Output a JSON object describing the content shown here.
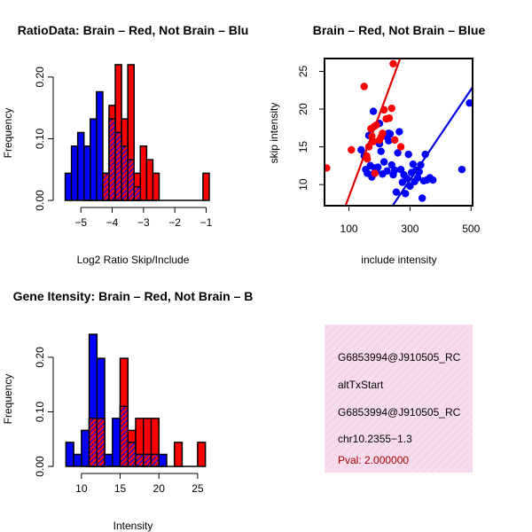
{
  "chart_data": [
    {
      "type": "bar",
      "title": "RatioData: Brain – Red, Not Brain – Blu",
      "xlabel": "Log2 Ratio Skip/Include",
      "ylabel": "Frequency",
      "xlim": [
        -5.6,
        -0.9
      ],
      "ylim": [
        0,
        0.23
      ],
      "xticks": [
        -5,
        -4,
        -3,
        -2,
        -1
      ],
      "xtick_labels": [
        "−5",
        "−4",
        "−3",
        "−2",
        "−1"
      ],
      "yticks": [
        0.0,
        0.1,
        0.2
      ],
      "ytick_labels": [
        "0.00",
        "0.10",
        "0.20"
      ],
      "series": [
        {
          "name": "Not Brain",
          "color": "#0000ff",
          "bins": [
            [
              -5.5,
              -5.3,
              0.044
            ],
            [
              -5.3,
              -5.1,
              0.088
            ],
            [
              -5.1,
              -4.9,
              0.11
            ],
            [
              -4.9,
              -4.7,
              0.088
            ],
            [
              -4.7,
              -4.5,
              0.132
            ],
            [
              -4.5,
              -4.3,
              0.176
            ],
            [
              -4.3,
              -4.1,
              0.044
            ],
            [
              -4.1,
              -3.9,
              0.132
            ],
            [
              -3.9,
              -3.7,
              0.11
            ],
            [
              -3.7,
              -3.5,
              0.088
            ],
            [
              -3.5,
              -3.3,
              0.066
            ],
            [
              -3.3,
              -3.1,
              0.022
            ]
          ]
        },
        {
          "name": "Brain",
          "color": "#ff0000",
          "bins": [
            [
              -4.3,
              -4.1,
              0.044
            ],
            [
              -4.1,
              -3.9,
              0.154
            ],
            [
              -3.9,
              -3.7,
              0.22
            ],
            [
              -3.7,
              -3.5,
              0.132
            ],
            [
              -3.5,
              -3.3,
              0.22
            ],
            [
              -3.3,
              -3.1,
              0.044
            ],
            [
              -3.1,
              -2.9,
              0.088
            ],
            [
              -2.9,
              -2.7,
              0.066
            ],
            [
              -2.7,
              -2.5,
              0.044
            ],
            [
              -1.1,
              -0.9,
              0.044
            ]
          ]
        }
      ]
    },
    {
      "type": "scatter",
      "title": "Brain – Red, Not Brain – Blue",
      "xlabel": "include intensity",
      "ylabel": "skip intensity",
      "xlim": [
        20,
        505
      ],
      "ylim": [
        7.2,
        26.7
      ],
      "xticks": [
        100,
        300,
        500
      ],
      "yticks": [
        10,
        15,
        20,
        25
      ],
      "series": [
        {
          "name": "Brain",
          "color": "#ff0000",
          "points": [
            [
              27,
              12.2
            ],
            [
              150,
              23.0
            ],
            [
              108,
              14.6
            ],
            [
              158,
              13.8
            ],
            [
              165,
              15.0
            ],
            [
              172,
              17.4
            ],
            [
              180,
              15.7
            ],
            [
              183,
              17.7
            ],
            [
              190,
              17.9
            ],
            [
              200,
              15.9
            ],
            [
              205,
              16.3
            ],
            [
              215,
              19.9
            ],
            [
              222,
              18.7
            ],
            [
              232,
              18.8
            ],
            [
              240,
              20.1
            ],
            [
              245,
              26.0
            ],
            [
              250,
              15.9
            ],
            [
              270,
              15.0
            ],
            [
              185,
              11.5
            ],
            [
              160,
              13.4
            ],
            [
              175,
              16.4
            ],
            [
              210,
              16.8
            ]
          ]
        },
        {
          "name": "Not Brain",
          "color": "#0000ff",
          "points": [
            [
              140,
              14.6
            ],
            [
              150,
              13.8
            ],
            [
              155,
              12.0
            ],
            [
              160,
              11.5
            ],
            [
              165,
              16.5
            ],
            [
              170,
              12.5
            ],
            [
              175,
              11.0
            ],
            [
              180,
              11.4
            ],
            [
              185,
              12.2
            ],
            [
              190,
              11.8
            ],
            [
              195,
              12.3
            ],
            [
              200,
              15.4
            ],
            [
              205,
              14.4
            ],
            [
              210,
              11.4
            ],
            [
              215,
              13.0
            ],
            [
              220,
              16.4
            ],
            [
              225,
              11.8
            ],
            [
              230,
              15.8
            ],
            [
              235,
              16.7
            ],
            [
              240,
              12.6
            ],
            [
              245,
              11.3
            ],
            [
              250,
              11.9
            ],
            [
              255,
              9.0
            ],
            [
              260,
              14.2
            ],
            [
              265,
              17.0
            ],
            [
              270,
              12.0
            ],
            [
              275,
              10.3
            ],
            [
              280,
              11.3
            ],
            [
              285,
              8.8
            ],
            [
              290,
              10.8
            ],
            [
              295,
              14.0
            ],
            [
              300,
              9.8
            ],
            [
              305,
              11.6
            ],
            [
              310,
              12.7
            ],
            [
              315,
              10.4
            ],
            [
              320,
              11.9
            ],
            [
              325,
              10.9
            ],
            [
              330,
              11.7
            ],
            [
              335,
              12.6
            ],
            [
              340,
              8.2
            ],
            [
              345,
              10.5
            ],
            [
              350,
              14.0
            ],
            [
              355,
              10.6
            ],
            [
              365,
              10.9
            ],
            [
              375,
              10.6
            ],
            [
              470,
              12.0
            ],
            [
              495,
              20.8
            ],
            [
              180,
              19.7
            ],
            [
              200,
              18.1
            ],
            [
              230,
              16.8
            ]
          ]
        }
      ],
      "fit_lines": [
        {
          "name": "Brain fit",
          "color": "#dd0000",
          "from": [
            89,
            7.2
          ],
          "to": [
            268,
            26.7
          ]
        },
        {
          "name": "Not Brain fit",
          "color": "#0000dd",
          "from": [
            243,
            7.2
          ],
          "to": [
            505,
            22.9
          ]
        }
      ]
    },
    {
      "type": "bar",
      "title": "Gene Itensity: Brain – Red, Not Brain – B",
      "xlabel": "Intensity",
      "ylabel": "Frequency",
      "xlim": [
        7.5,
        26.5
      ],
      "ylim": [
        0,
        0.26
      ],
      "xticks": [
        10,
        15,
        20,
        25
      ],
      "yticks": [
        0.0,
        0.1,
        0.2
      ],
      "ytick_labels": [
        "0.00",
        "0.10",
        "0.20"
      ],
      "series": [
        {
          "name": "Not Brain",
          "color": "#0000ff",
          "bins": [
            [
              8,
              9,
              0.044
            ],
            [
              9,
              10,
              0.022
            ],
            [
              10,
              11,
              0.066
            ],
            [
              11,
              12,
              0.242
            ],
            [
              12,
              13,
              0.198
            ],
            [
              13,
              14,
              0.022
            ],
            [
              14,
              15,
              0.088
            ],
            [
              15,
              16,
              0.11
            ],
            [
              16,
              17,
              0.044
            ],
            [
              17,
              18,
              0.022
            ],
            [
              18,
              19,
              0.022
            ],
            [
              19,
              20,
              0.022
            ],
            [
              20,
              21,
              0.022
            ]
          ]
        },
        {
          "name": "Brain",
          "color": "#ff0000",
          "bins": [
            [
              11,
              12,
              0.088
            ],
            [
              12,
              13,
              0.088
            ],
            [
              15,
              16,
              0.198
            ],
            [
              16,
              17,
              0.066
            ],
            [
              17,
              18,
              0.088
            ],
            [
              18,
              19,
              0.088
            ],
            [
              19,
              20,
              0.088
            ],
            [
              22,
              23,
              0.044
            ],
            [
              25,
              26,
              0.044
            ]
          ]
        }
      ]
    }
  ],
  "info_box": {
    "lines": [
      "G6853994@J910505_RC",
      "altTxStart",
      "G6853994@J910505_RC",
      "chr10.2355−1.3"
    ],
    "pval": "Pval: 2.000000",
    "pval_color": "#aa0000",
    "background_color": "#f7dbee"
  }
}
